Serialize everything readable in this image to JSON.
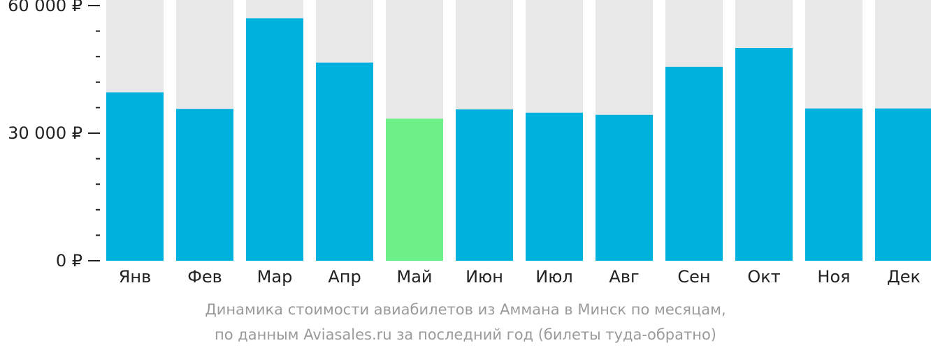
{
  "chart_data": {
    "type": "bar",
    "categories": [
      "Янв",
      "Фев",
      "Мар",
      "Апр",
      "Май",
      "Июн",
      "Июл",
      "Авг",
      "Сен",
      "Окт",
      "Ноя",
      "Дек"
    ],
    "series": [
      {
        "values": [
          39600,
          35700,
          57000,
          46600,
          33400,
          35600,
          34800,
          34300,
          45600,
          50000,
          35800,
          35800
        ]
      }
    ],
    "ylim": [
      0,
      60000
    ],
    "y_ticks": [
      {
        "value": 60000,
        "label": "60 000 ₽"
      },
      {
        "value": 30000,
        "label": "30 000 ₽"
      },
      {
        "value": 0,
        "label": "0 ₽"
      }
    ],
    "y_minor_step": 6000,
    "highlight_index": 4,
    "colors": {
      "bar": "#00b0dd",
      "highlight": "#6cf087",
      "track": "#e8e8e8",
      "axis_text": "#222222",
      "tick": "#222222"
    },
    "caption_line_1": "Динамика стоимости авиабилетов из Аммана в Минск по месяцам,",
    "caption_line_2": "по данным Aviasales.ru за последний год (билеты туда-обратно)",
    "grid": false,
    "legend": "none"
  }
}
